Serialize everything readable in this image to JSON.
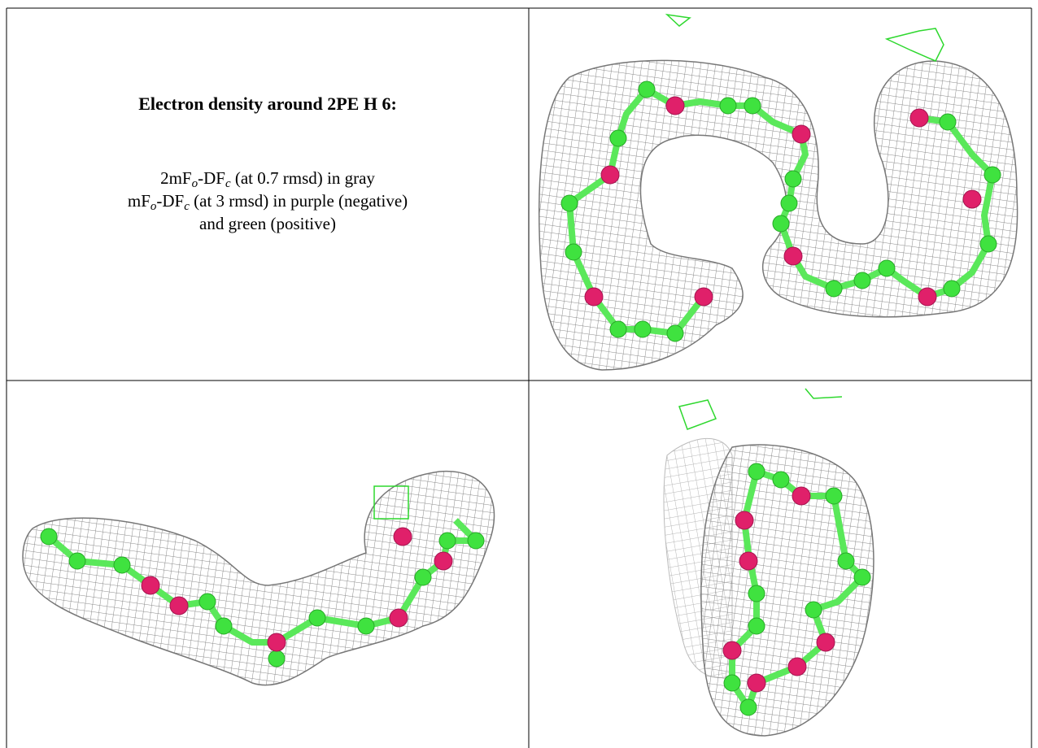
{
  "title": "Electron density around 2PE H 6:",
  "legend": {
    "lines": [
      [
        "2mF",
        "o",
        "-DF",
        "c",
        " (at 0.7 rmsd) in gray"
      ],
      [
        "mF",
        "o",
        "-DF",
        "c",
        " (at 3 rmsd) in purple (negative)"
      ],
      [
        "and green (positive)"
      ]
    ]
  }
}
